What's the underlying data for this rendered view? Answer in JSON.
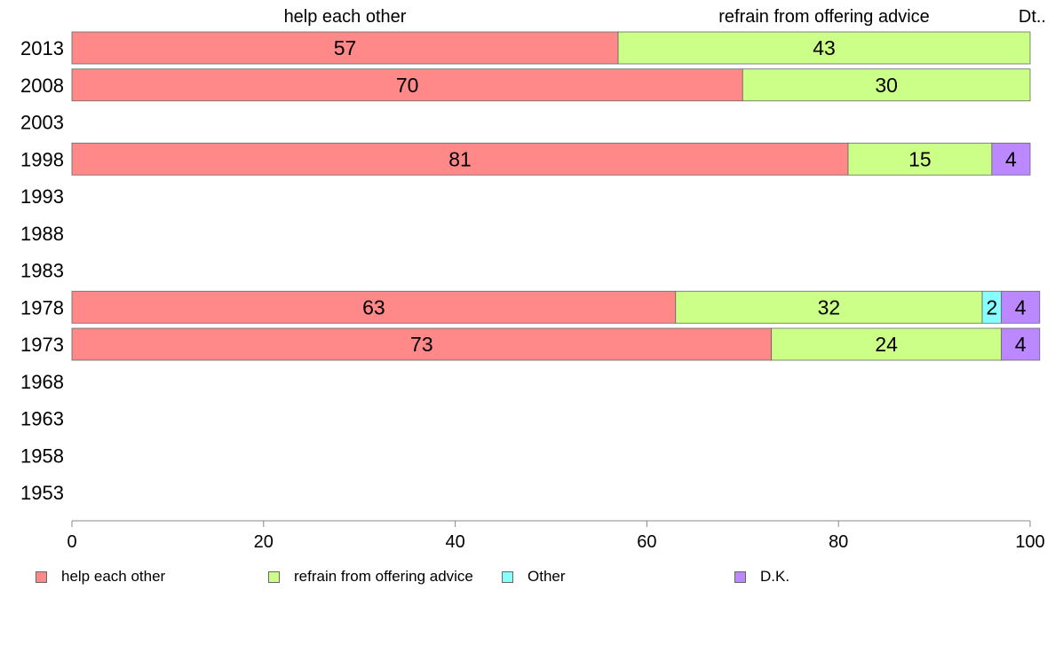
{
  "chart_data": {
    "type": "bar",
    "orientation": "horizontal",
    "stacked": true,
    "categories": [
      "2013",
      "2008",
      "2003",
      "1998",
      "1993",
      "1988",
      "1983",
      "1978",
      "1973",
      "1968",
      "1963",
      "1958",
      "1953"
    ],
    "series": [
      {
        "name": "help each other",
        "color": "#ff8888",
        "values": [
          57,
          70,
          null,
          81,
          null,
          null,
          null,
          63,
          73,
          null,
          null,
          null,
          null
        ]
      },
      {
        "name": "refrain from offering advice",
        "color": "#ccff88",
        "values": [
          43,
          30,
          null,
          15,
          null,
          null,
          null,
          32,
          24,
          null,
          null,
          null,
          null
        ]
      },
      {
        "name": "Other",
        "color": "#88ffff",
        "values": [
          null,
          null,
          null,
          null,
          null,
          null,
          null,
          2,
          null,
          null,
          null,
          null,
          null
        ]
      },
      {
        "name": "D.K.",
        "color": "#bb88ff",
        "values": [
          null,
          null,
          null,
          4,
          null,
          null,
          null,
          4,
          4,
          null,
          null,
          null,
          null
        ]
      }
    ],
    "top_labels": [
      "help each other",
      "refrain from offering advice",
      "Dt.."
    ],
    "xlim": [
      0,
      100
    ],
    "xticks": [
      0,
      20,
      40,
      60,
      80,
      100
    ],
    "legend_position": "bottom"
  }
}
